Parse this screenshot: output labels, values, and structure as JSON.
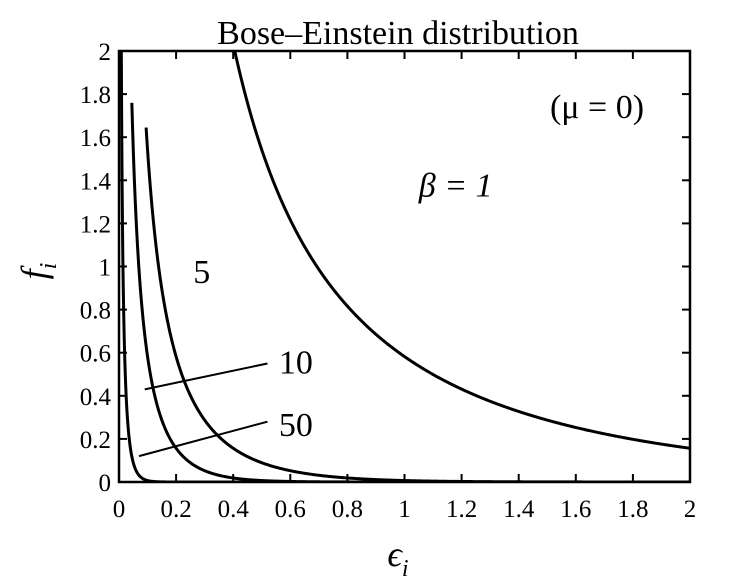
{
  "chart_data": {
    "type": "line",
    "title": "Bose–Einstein distribution",
    "xlabel": "ϵ",
    "xlabel_sub": "i",
    "ylabel": "f",
    "ylabel_sub": "i",
    "xlim": [
      0,
      2
    ],
    "ylim": [
      0,
      2
    ],
    "xticks": [
      0,
      0.2,
      0.4,
      0.6,
      0.8,
      1,
      1.2,
      1.4,
      1.6,
      1.8,
      2
    ],
    "xtick_labels": [
      "0",
      "0.2",
      "0.4",
      "0.6",
      "0.8",
      "1",
      "1.2",
      "1.4",
      "1.6",
      "1.8",
      "2"
    ],
    "yticks": [
      0,
      0.2,
      0.4,
      0.6,
      0.8,
      1,
      1.2,
      1.4,
      1.6,
      1.8,
      2
    ],
    "ytick_labels": [
      "0",
      "0.2",
      "0.4",
      "0.6",
      "0.8",
      "1",
      "1.2",
      "1.4",
      "1.6",
      "1.8",
      "2"
    ],
    "grid": false,
    "annotation": "(μ = 0)",
    "series": [
      {
        "name": "β = 1",
        "beta": 1,
        "x": [
          0.4,
          0.5,
          0.6,
          0.7,
          0.8,
          0.9,
          1.0,
          1.2,
          1.4,
          1.6,
          1.8,
          2.0
        ],
        "y": [
          2.03,
          1.54,
          1.22,
          0.99,
          0.82,
          0.68,
          0.58,
          0.43,
          0.33,
          0.25,
          0.2,
          0.16
        ]
      },
      {
        "name": "5",
        "beta": 5,
        "x": [
          0.095,
          0.12,
          0.15,
          0.2,
          0.25,
          0.3,
          0.4,
          0.5,
          0.6,
          0.8,
          1.0,
          2.0
        ],
        "y": [
          1.9,
          1.22,
          0.9,
          0.58,
          0.4,
          0.29,
          0.16,
          0.09,
          0.05,
          0.02,
          0.01,
          0.0
        ]
      },
      {
        "name": "10",
        "beta": 10,
        "x": [
          0.045,
          0.06,
          0.08,
          0.1,
          0.15,
          0.2,
          0.25,
          0.3,
          0.4,
          0.6,
          1.0,
          2.0
        ],
        "y": [
          2.0,
          1.22,
          0.8,
          0.58,
          0.29,
          0.16,
          0.09,
          0.05,
          0.02,
          0.0,
          0.0,
          0.0
        ]
      },
      {
        "name": "50",
        "beta": 50,
        "x": [
          0.005,
          0.01,
          0.02,
          0.03,
          0.04,
          0.05,
          0.06,
          0.08,
          0.1,
          0.15,
          2.0
        ],
        "y": [
          0.75,
          0.6,
          0.4,
          0.29,
          0.16,
          0.09,
          0.05,
          0.02,
          0.01,
          0.0,
          0.0
        ]
      }
    ],
    "curve_labels": [
      {
        "text": "β = 1",
        "x": 1.05,
        "y": 1.38
      },
      {
        "text": "5",
        "x": 0.26,
        "y": 0.98
      },
      {
        "text": "10",
        "x": 0.56,
        "y": 0.56
      },
      {
        "text": "50",
        "x": 0.56,
        "y": 0.27
      }
    ],
    "leader_lines": [
      {
        "series": "10",
        "from": [
          0.09,
          0.43
        ],
        "to": [
          0.52,
          0.55
        ]
      },
      {
        "series": "50",
        "from": [
          0.07,
          0.12
        ],
        "to": [
          0.52,
          0.28
        ]
      }
    ]
  }
}
